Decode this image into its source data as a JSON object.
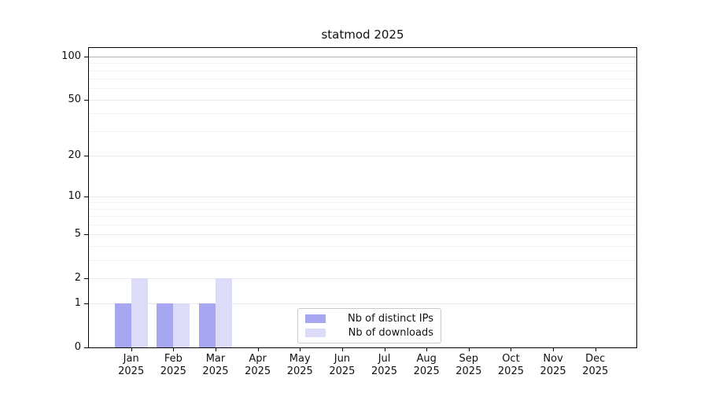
{
  "title": "statmod 2025",
  "chart_data": {
    "type": "bar",
    "title": "statmod 2025",
    "categories": [
      "Jan",
      "Feb",
      "Mar",
      "Apr",
      "May",
      "Jun",
      "Jul",
      "Aug",
      "Sep",
      "Oct",
      "Nov",
      "Dec"
    ],
    "category_year": "2025",
    "series": [
      {
        "name": "Nb of distinct IPs",
        "color": "#a6a6f1",
        "values": [
          1,
          1,
          1,
          0,
          0,
          0,
          0,
          0,
          0,
          0,
          0,
          0
        ]
      },
      {
        "name": "Nb of downloads",
        "color": "#dcdcf8",
        "values": [
          2,
          1,
          2,
          0,
          0,
          0,
          0,
          0,
          0,
          0,
          0,
          0
        ]
      }
    ],
    "yscale": "log1p",
    "ymax": 100,
    "yticks": [
      0,
      1,
      2,
      5,
      10,
      20,
      50,
      100
    ],
    "minor_gridlines": [
      3,
      4,
      6,
      7,
      8,
      9,
      30,
      40,
      60,
      70,
      80,
      90
    ],
    "xlabel": "",
    "ylabel": "",
    "grid": true,
    "legend_position": "bottom-center",
    "axis_color": "#000000",
    "background": "#ffffff"
  }
}
